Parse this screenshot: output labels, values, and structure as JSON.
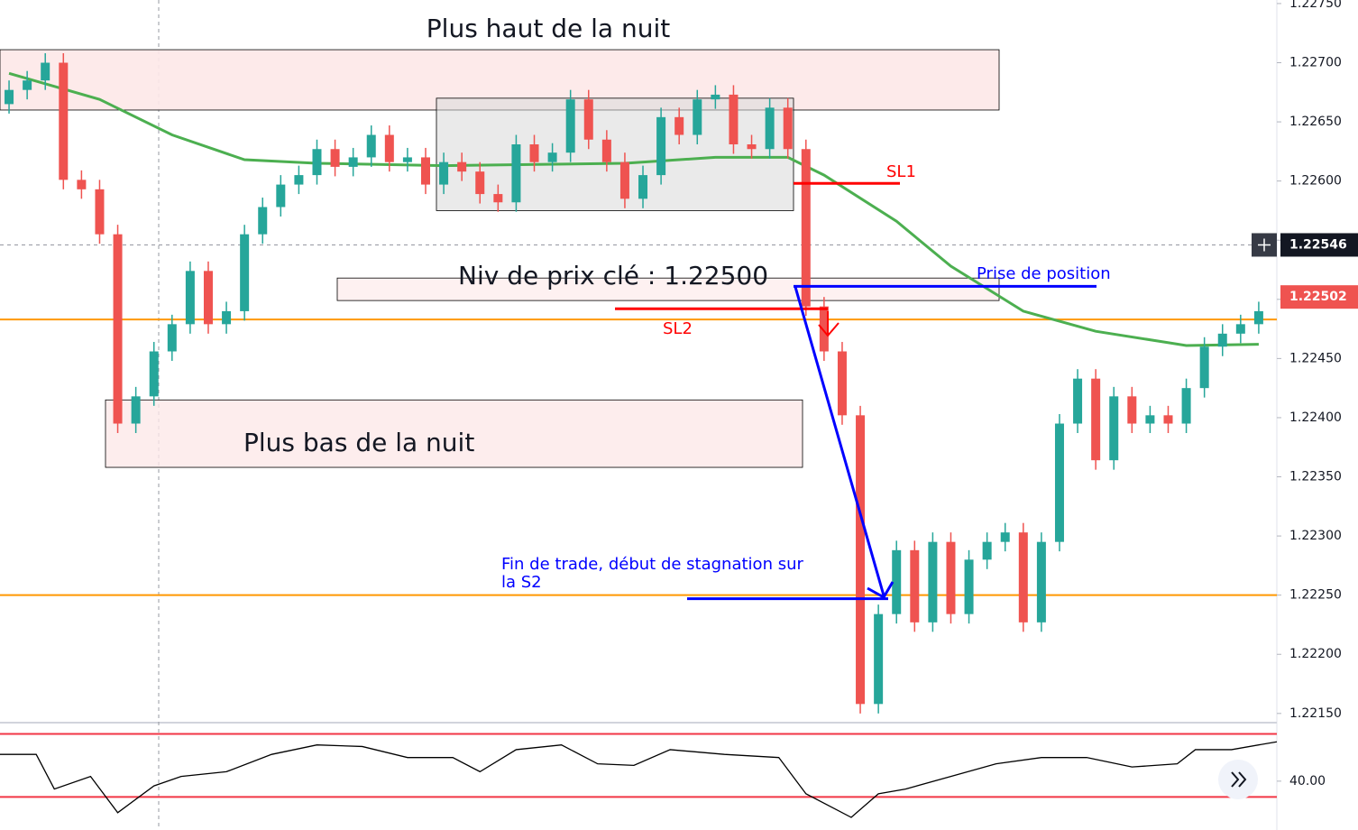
{
  "chart_data": {
    "type": "candlestick",
    "xlim": [
      -0.5,
      70
    ],
    "ylim": [
      1.22143,
      1.22753
    ],
    "yticks": [
      {
        "value": 1.2215,
        "label": "1.22150"
      },
      {
        "value": 1.222,
        "label": "1.22200"
      },
      {
        "value": 1.2225,
        "label": "1.22250"
      },
      {
        "value": 1.223,
        "label": "1.22300"
      },
      {
        "value": 1.2235,
        "label": "1.22350"
      },
      {
        "value": 1.224,
        "label": "1.22400"
      },
      {
        "value": 1.2245,
        "label": "1.22450"
      },
      {
        "value": 1.225,
        "label": "1.22500"
      },
      {
        "value": 1.2255,
        "label": "1.22550"
      },
      {
        "value": 1.226,
        "label": "1.22600"
      },
      {
        "value": 1.2265,
        "label": "1.22650"
      },
      {
        "value": 1.227,
        "label": "1.22700"
      },
      {
        "value": 1.2275,
        "label": "1.22750"
      }
    ],
    "grid": false,
    "up_color": "#26a69a",
    "down_color": "#ef5350",
    "open": [
      1.22665,
      1.22677,
      1.22685,
      1.227,
      1.22601,
      1.22593,
      1.22555,
      1.22395,
      1.22418,
      1.22456,
      1.22479,
      1.22524,
      1.22479,
      1.2249,
      1.22555,
      1.22578,
      1.22597,
      1.22605,
      1.22627,
      1.22612,
      1.2262,
      1.22639,
      1.22616,
      1.2262,
      1.22597,
      1.22616,
      1.22608,
      1.22589,
      1.22582,
      1.22631,
      1.22616,
      1.22624,
      1.22669,
      1.22635,
      1.22616,
      1.22585,
      1.22605,
      1.22654,
      1.22639,
      1.22669,
      1.22673,
      1.22631,
      1.22627,
      1.22662,
      1.22627,
      1.22494,
      1.22456,
      1.22402,
      1.22158,
      1.22234,
      1.22288,
      1.22227,
      1.22295,
      1.22234,
      1.2228,
      1.22295,
      1.22303,
      1.22227,
      1.22295,
      1.22395,
      1.22433,
      1.22364,
      1.22418,
      1.22395,
      1.22402,
      1.22395,
      1.22425,
      1.2246,
      1.22471,
      1.22479
    ],
    "high": [
      1.22685,
      1.22693,
      1.22708,
      1.22708,
      1.22609,
      1.22601,
      1.22563,
      1.22426,
      1.22464,
      1.22487,
      1.22532,
      1.22532,
      1.22498,
      1.22563,
      1.22586,
      1.22605,
      1.22613,
      1.22635,
      1.22635,
      1.22628,
      1.22647,
      1.22647,
      1.22628,
      1.22628,
      1.22624,
      1.22624,
      1.22616,
      1.22597,
      1.22639,
      1.22639,
      1.22632,
      1.22677,
      1.22677,
      1.22643,
      1.22624,
      1.22613,
      1.22662,
      1.22662,
      1.22677,
      1.22681,
      1.22681,
      1.22639,
      1.2267,
      1.2267,
      1.22635,
      1.22502,
      1.22464,
      1.2241,
      1.22242,
      1.22296,
      1.22296,
      1.22303,
      1.22303,
      1.22288,
      1.22303,
      1.22311,
      1.22311,
      1.22303,
      1.22403,
      1.22441,
      1.22441,
      1.22426,
      1.22426,
      1.2241,
      1.2241,
      1.22433,
      1.22468,
      1.22479,
      1.22487,
      1.22498
    ],
    "low": [
      1.22657,
      1.22669,
      1.22677,
      1.22593,
      1.22585,
      1.22547,
      1.22387,
      1.22387,
      1.2241,
      1.22448,
      1.22471,
      1.22471,
      1.22471,
      1.22482,
      1.22547,
      1.2257,
      1.22589,
      1.22597,
      1.22604,
      1.22604,
      1.22612,
      1.22608,
      1.22608,
      1.22589,
      1.22589,
      1.226,
      1.22581,
      1.22574,
      1.22574,
      1.22608,
      1.22608,
      1.22616,
      1.22627,
      1.22608,
      1.22577,
      1.22577,
      1.22597,
      1.22631,
      1.22631,
      1.22661,
      1.22623,
      1.22619,
      1.22619,
      1.22619,
      1.22486,
      1.22448,
      1.22394,
      1.2215,
      1.2215,
      1.22226,
      1.22219,
      1.22219,
      1.22226,
      1.22226,
      1.22272,
      1.22287,
      1.22219,
      1.22219,
      1.22287,
      1.22387,
      1.22356,
      1.22356,
      1.22387,
      1.22387,
      1.22387,
      1.22387,
      1.22417,
      1.22452,
      1.22463,
      1.22471
    ],
    "close": [
      1.22677,
      1.22685,
      1.227,
      1.22601,
      1.22593,
      1.22555,
      1.22395,
      1.22418,
      1.22456,
      1.22479,
      1.22524,
      1.22479,
      1.2249,
      1.22555,
      1.22578,
      1.22597,
      1.22605,
      1.22627,
      1.22612,
      1.2262,
      1.22639,
      1.22616,
      1.2262,
      1.22597,
      1.22616,
      1.22608,
      1.22589,
      1.22582,
      1.22631,
      1.22616,
      1.22624,
      1.22669,
      1.22635,
      1.22616,
      1.22585,
      1.22605,
      1.22654,
      1.22639,
      1.22669,
      1.22673,
      1.22631,
      1.22627,
      1.22662,
      1.22627,
      1.22494,
      1.22456,
      1.22402,
      1.22158,
      1.22234,
      1.22288,
      1.22227,
      1.22295,
      1.22234,
      1.2228,
      1.22295,
      1.22303,
      1.22227,
      1.22295,
      1.22395,
      1.22433,
      1.22364,
      1.22418,
      1.22395,
      1.22402,
      1.22395,
      1.22425,
      1.2246,
      1.22471,
      1.22479,
      1.2249
    ],
    "moving_average": {
      "color": "#4caf50",
      "x": [
        0,
        5,
        9,
        13,
        17,
        24,
        34,
        39,
        43,
        45,
        49,
        52,
        56,
        60,
        65,
        69
      ],
      "values": [
        1.22691,
        1.22669,
        1.22639,
        1.22618,
        1.22615,
        1.22613,
        1.22615,
        1.2262,
        1.2262,
        1.22605,
        1.22566,
        1.22528,
        1.2249,
        1.22473,
        1.22461,
        1.22462
      ]
    },
    "zones": [
      {
        "top": 1.22711,
        "bottom": 1.2266
      },
      {
        "top": 1.2267,
        "bottom": 1.22575
      },
      {
        "top": 1.22518,
        "bottom": 1.22499
      },
      {
        "top": 1.22415,
        "bottom": 1.22358
      }
    ],
    "levels": [
      1.22483,
      1.2225
    ],
    "level_color": "#ff9800",
    "sl1": 1.22598,
    "sl2": 1.22492,
    "entry": 1.22511,
    "exit": 1.22247,
    "price_labels": [
      {
        "value": 1.22546,
        "label": "1.22546"
      },
      {
        "value": 1.22502,
        "label": "1.22502"
      }
    ],
    "annotations": [
      {
        "text": "Plus haut de la nuit"
      },
      {
        "text": "Plus bas de la nuit"
      },
      {
        "text": "Niv de prix clé : 1.22500"
      },
      {
        "text": "Prise de position"
      },
      {
        "text": "SL1"
      },
      {
        "text": "SL2"
      },
      {
        "lines": [
          "Fin de trade, début de stagnation sur",
          "la S2"
        ]
      }
    ],
    "rsi": {
      "ylim": [
        9,
        76
      ],
      "levels": [
        70,
        30
      ],
      "yticks": [
        {
          "value": 40,
          "label": "40.00"
        }
      ],
      "x": [
        -0.5,
        1.5,
        2.5,
        4.5,
        6,
        8,
        9.5,
        12,
        14.5,
        17,
        19.5,
        22,
        24.5,
        26,
        28,
        30.5,
        32.5,
        34.5,
        36.5,
        39.5,
        42.5,
        44,
        46.5,
        48,
        49.5,
        52,
        54.5,
        57,
        59.5,
        62,
        64.5,
        65.5,
        67.5,
        70
      ],
      "values": [
        57,
        57,
        35,
        43,
        20,
        37,
        43,
        46,
        57,
        63,
        62,
        55,
        55,
        46,
        60,
        63,
        51,
        50,
        60,
        57,
        55,
        32,
        17,
        32,
        35,
        43,
        51,
        55,
        55,
        49,
        51,
        60,
        60,
        65
      ]
    }
  }
}
